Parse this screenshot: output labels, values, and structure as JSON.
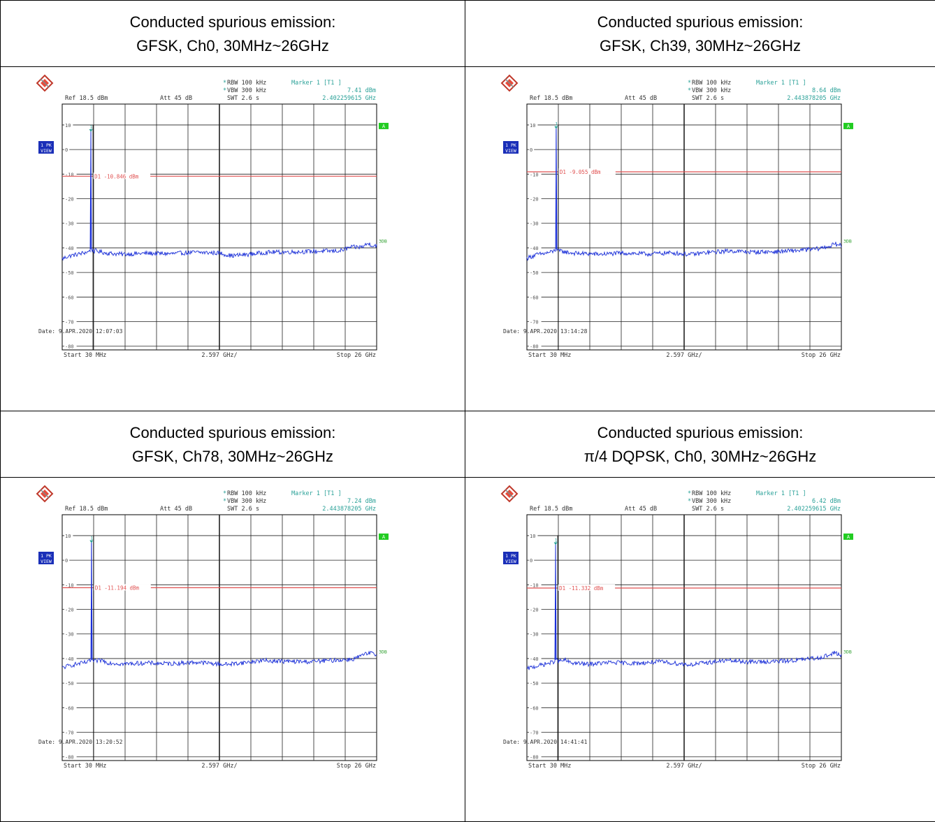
{
  "chart_data": [
    {
      "type": "line",
      "title_line1": "Conducted spurious emission:",
      "title_line2": "GFSK, Ch0, 30MHz~26GHz",
      "instrument": {
        "rbw": "RBW 100 kHz",
        "vbw": "VBW 300 kHz",
        "swt": "SWT 2.6 s",
        "ref": "Ref  18.5 dBm",
        "att": "Att  45 dB",
        "marker_label": "Marker 1 [T1 ]",
        "marker_level": "7.41 dBm",
        "marker_freq": "2.402259615 GHz",
        "trace_label": [
          "1 PK",
          "VIEW"
        ],
        "a_badge": "A",
        "tdb_badge": "3DB",
        "start": "Start  30 MHz",
        "span": "2.597 GHz/",
        "stop": "Stop  26 GHz",
        "marker_num": "1",
        "date": "Date: 9.APR.2020  12:07:03"
      },
      "display_line": {
        "label": "D1  -10.846 dBm",
        "value": -10.846
      },
      "y_ticks": [
        "10",
        "0",
        "-10",
        "-20",
        "-30",
        "-40",
        "-50",
        "-60",
        "-70",
        "-80"
      ],
      "ylim": [
        -81.5,
        18.5
      ],
      "xlim_mhz": [
        30,
        26000
      ],
      "marker": {
        "freq_mhz": 2402,
        "level_dbm": 7.41
      },
      "noise": [
        [
          30,
          -44.5
        ],
        [
          400,
          -43.6
        ],
        [
          900,
          -43
        ],
        [
          1500,
          -42.4
        ],
        [
          2000,
          -41.8
        ],
        [
          2300,
          -41.5
        ],
        [
          2402,
          7.41
        ],
        [
          2500,
          -41.5
        ],
        [
          2800,
          -41.2
        ],
        [
          3200,
          -41.6
        ],
        [
          3600,
          -42.1
        ],
        [
          5000,
          -42.6
        ],
        [
          7000,
          -42.2
        ],
        [
          9000,
          -42.4
        ],
        [
          11000,
          -41.8
        ],
        [
          13000,
          -42.1
        ],
        [
          14000,
          -43.2
        ],
        [
          15500,
          -42.6
        ],
        [
          17000,
          -41.8
        ],
        [
          19500,
          -41.6
        ],
        [
          21000,
          -41.4
        ],
        [
          23000,
          -41.2
        ],
        [
          23800,
          -39.8
        ],
        [
          24800,
          -39.6
        ],
        [
          25300,
          -38.2
        ],
        [
          25700,
          -39
        ],
        [
          26000,
          -39.1
        ]
      ]
    },
    {
      "type": "line",
      "title_line1": "Conducted spurious emission:",
      "title_line2": "GFSK, Ch39, 30MHz~26GHz",
      "instrument": {
        "rbw": "RBW 100 kHz",
        "vbw": "VBW 300 kHz",
        "swt": "SWT 2.6 s",
        "ref": "Ref  18.5 dBm",
        "att": "Att  45 dB",
        "marker_label": "Marker 1 [T1 ]",
        "marker_level": "8.64 dBm",
        "marker_freq": "2.443878205 GHz",
        "trace_label": [
          "1 PK",
          "VIEW"
        ],
        "a_badge": "A",
        "tdb_badge": "3DB",
        "start": "Start  30 MHz",
        "span": "2.597 GHz/",
        "stop": "Stop  26 GHz",
        "marker_num": "1",
        "date": "Date: 9.APR.2020  13:14:28"
      },
      "display_line": {
        "label": "D1  -9.055 dBm",
        "value": -9.055
      },
      "y_ticks": [
        "10",
        "0",
        "-10",
        "-20",
        "-30",
        "-40",
        "-50",
        "-60",
        "-70",
        "-80"
      ],
      "ylim": [
        -81.5,
        18.5
      ],
      "xlim_mhz": [
        30,
        26000
      ],
      "marker": {
        "freq_mhz": 2444,
        "level_dbm": 8.64
      },
      "noise": [
        [
          30,
          -44.2
        ],
        [
          400,
          -43.5
        ],
        [
          900,
          -42.7
        ],
        [
          1500,
          -42.3
        ],
        [
          2000,
          -41.7
        ],
        [
          2350,
          -41.4
        ],
        [
          2444,
          8.64
        ],
        [
          2550,
          -41.5
        ],
        [
          2900,
          -41.3
        ],
        [
          3300,
          -41.8
        ],
        [
          4000,
          -42.2
        ],
        [
          6000,
          -42.6
        ],
        [
          8000,
          -42.1
        ],
        [
          10000,
          -42.5
        ],
        [
          12000,
          -42
        ],
        [
          13500,
          -42.7
        ],
        [
          15000,
          -41.9
        ],
        [
          16800,
          -41.2
        ],
        [
          18500,
          -41.7
        ],
        [
          20500,
          -41.6
        ],
        [
          22500,
          -41
        ],
        [
          24000,
          -40.4
        ],
        [
          25000,
          -39.4
        ],
        [
          25500,
          -38.4
        ],
        [
          26000,
          -39.2
        ]
      ]
    },
    {
      "type": "line",
      "title_line1": "Conducted spurious emission:",
      "title_line2": "GFSK, Ch78, 30MHz~26GHz",
      "instrument": {
        "rbw": "RBW 100 kHz",
        "vbw": "VBW 300 kHz",
        "swt": "SWT 2.6 s",
        "ref": "Ref  18.5 dBm",
        "att": "Att  45 dB",
        "marker_label": "Marker 1 [T1 ]",
        "marker_level": "7.24 dBm",
        "marker_freq": "2.443878205 GHz",
        "trace_label": [
          "1 PK",
          "VIEW"
        ],
        "a_badge": "A",
        "tdb_badge": "3DB",
        "start": "Start  30 MHz",
        "span": "2.597 GHz/",
        "stop": "Stop  26 GHz",
        "marker_num": "1",
        "date": "Date: 9.APR.2020  13:20:52"
      },
      "display_line": {
        "label": "D1  -11.194 dBm",
        "value": -11.194
      },
      "y_ticks": [
        "10",
        "0",
        "-10",
        "-20",
        "-30",
        "-40",
        "-50",
        "-60",
        "-70",
        "-80"
      ],
      "ylim": [
        -81.5,
        18.5
      ],
      "xlim_mhz": [
        30,
        26000
      ],
      "marker": {
        "freq_mhz": 2444,
        "level_dbm": 7.24
      },
      "noise": [
        [
          30,
          -43.8
        ],
        [
          400,
          -43.2
        ],
        [
          900,
          -42.6
        ],
        [
          1500,
          -42
        ],
        [
          2000,
          -41.6
        ],
        [
          2350,
          -41.4
        ],
        [
          2444,
          7.24
        ],
        [
          2550,
          -41.3
        ],
        [
          2900,
          -41
        ],
        [
          3300,
          -40.6
        ],
        [
          3700,
          -41.6
        ],
        [
          5000,
          -42.2
        ],
        [
          7000,
          -41.8
        ],
        [
          9000,
          -42.1
        ],
        [
          11000,
          -41.5
        ],
        [
          13500,
          -42.4
        ],
        [
          15000,
          -41.7
        ],
        [
          16500,
          -40.8
        ],
        [
          18500,
          -41.2
        ],
        [
          20500,
          -41.3
        ],
        [
          22500,
          -40.7
        ],
        [
          24000,
          -40.3
        ],
        [
          25000,
          -38.4
        ],
        [
          25500,
          -37.8
        ],
        [
          26000,
          -38.6
        ]
      ]
    },
    {
      "type": "line",
      "title_line1": "Conducted spurious emission:",
      "title_line2": "π/4 DQPSK, Ch0, 30MHz~26GHz",
      "instrument": {
        "rbw": "RBW 100 kHz",
        "vbw": "VBW 300 kHz",
        "swt": "SWT 2.6 s",
        "ref": "Ref  18.5 dBm",
        "att": "Att  45 dB",
        "marker_label": "Marker 1 [T1 ]",
        "marker_level": "6.42 dBm",
        "marker_freq": "2.402259615 GHz",
        "trace_label": [
          "1 PK",
          "VIEW"
        ],
        "a_badge": "A",
        "tdb_badge": "3DB",
        "start": "Start  30 MHz",
        "span": "2.597 GHz/",
        "stop": "Stop  26 GHz",
        "marker_num": "1",
        "date": "Date: 9.APR.2020  14:41:41"
      },
      "display_line": {
        "label": "D1  -11.332 dBm",
        "value": -11.332
      },
      "y_ticks": [
        "10",
        "0",
        "-10",
        "-20",
        "-30",
        "-40",
        "-50",
        "-60",
        "-70",
        "-80"
      ],
      "ylim": [
        -81.5,
        18.5
      ],
      "xlim_mhz": [
        30,
        26000
      ],
      "marker": {
        "freq_mhz": 2402,
        "level_dbm": 6.42
      },
      "noise": [
        [
          30,
          -44.3
        ],
        [
          400,
          -43.6
        ],
        [
          900,
          -43
        ],
        [
          1500,
          -42.3
        ],
        [
          2000,
          -41.7
        ],
        [
          2300,
          -41.4
        ],
        [
          2402,
          6.42
        ],
        [
          2500,
          -41.3
        ],
        [
          2800,
          -41
        ],
        [
          3200,
          -40.7
        ],
        [
          3600,
          -41.7
        ],
        [
          5000,
          -42.3
        ],
        [
          7000,
          -41.6
        ],
        [
          9000,
          -42
        ],
        [
          11000,
          -41.3
        ],
        [
          13500,
          -42.5
        ],
        [
          15000,
          -41.6
        ],
        [
          16500,
          -40.8
        ],
        [
          18500,
          -41.4
        ],
        [
          20500,
          -41.2
        ],
        [
          22500,
          -40.6
        ],
        [
          24000,
          -39.8
        ],
        [
          25000,
          -38.6
        ],
        [
          25500,
          -37.6
        ],
        [
          26000,
          -38.8
        ]
      ]
    }
  ]
}
